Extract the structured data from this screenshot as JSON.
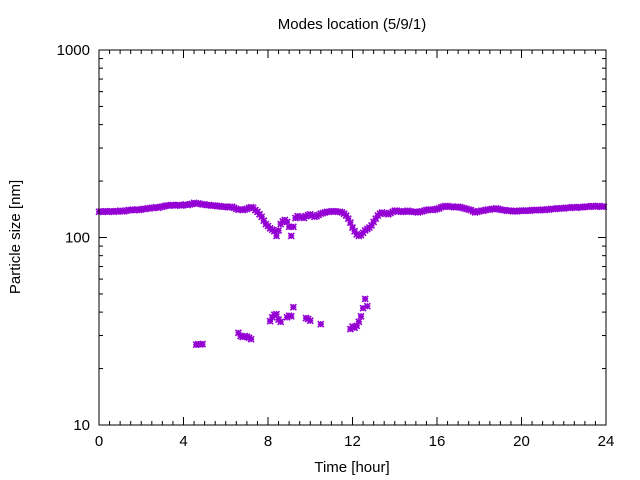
{
  "chart_data": {
    "type": "scatter",
    "title": "Modes location (5/9/1)",
    "xlabel": "Time [hour]",
    "ylabel": "Particle size [nm]",
    "xlim": [
      0,
      24
    ],
    "ylim": [
      10,
      1000
    ],
    "yscale": "log",
    "grid": false,
    "legend": "none",
    "marker_color": "#9400d3",
    "x_ticks": [
      0,
      4,
      8,
      12,
      16,
      20,
      24
    ],
    "x_tick_labels": [
      "0",
      "4",
      "8",
      "12",
      "16",
      "20",
      "24"
    ],
    "y_ticks": [
      10,
      100,
      1000
    ],
    "y_tick_labels": [
      "10",
      "100",
      "1000"
    ],
    "points": [
      [
        0.0,
        137
      ],
      [
        0.1,
        138
      ],
      [
        0.2,
        137
      ],
      [
        0.3,
        138
      ],
      [
        0.4,
        137
      ],
      [
        0.5,
        138
      ],
      [
        0.6,
        138
      ],
      [
        0.7,
        137
      ],
      [
        0.8,
        138
      ],
      [
        0.9,
        138
      ],
      [
        1.0,
        139
      ],
      [
        1.1,
        138
      ],
      [
        1.2,
        138
      ],
      [
        1.3,
        139
      ],
      [
        1.4,
        140
      ],
      [
        1.5,
        140
      ],
      [
        1.6,
        141
      ],
      [
        1.7,
        140
      ],
      [
        1.8,
        141
      ],
      [
        1.9,
        140
      ],
      [
        2.0,
        141
      ],
      [
        2.1,
        142
      ],
      [
        2.2,
        142
      ],
      [
        2.3,
        143
      ],
      [
        2.4,
        143
      ],
      [
        2.5,
        144
      ],
      [
        2.6,
        144
      ],
      [
        2.7,
        145
      ],
      [
        2.8,
        144
      ],
      [
        2.9,
        145
      ],
      [
        3.0,
        146
      ],
      [
        3.1,
        147
      ],
      [
        3.2,
        148
      ],
      [
        3.3,
        148
      ],
      [
        3.4,
        149
      ],
      [
        3.5,
        149
      ],
      [
        3.6,
        148
      ],
      [
        3.7,
        149
      ],
      [
        3.8,
        149
      ],
      [
        3.9,
        148
      ],
      [
        4.0,
        149
      ],
      [
        4.1,
        150
      ],
      [
        4.2,
        149
      ],
      [
        4.3,
        150
      ],
      [
        4.4,
        151
      ],
      [
        4.5,
        153
      ],
      [
        4.6,
        152
      ],
      [
        4.7,
        152
      ],
      [
        4.8,
        151
      ],
      [
        4.9,
        150
      ],
      [
        5.0,
        150
      ],
      [
        5.1,
        149
      ],
      [
        5.2,
        149
      ],
      [
        5.3,
        148
      ],
      [
        5.4,
        148
      ],
      [
        5.5,
        148
      ],
      [
        5.6,
        147
      ],
      [
        5.7,
        147
      ],
      [
        5.8,
        146
      ],
      [
        5.9,
        146
      ],
      [
        6.0,
        146
      ],
      [
        6.1,
        145
      ],
      [
        6.2,
        145
      ],
      [
        6.3,
        146
      ],
      [
        6.4,
        144
      ],
      [
        6.5,
        142
      ],
      [
        6.6,
        141
      ],
      [
        6.7,
        141
      ],
      [
        6.8,
        140
      ],
      [
        6.9,
        141
      ],
      [
        7.0,
        142
      ],
      [
        7.1,
        144
      ],
      [
        7.2,
        145
      ],
      [
        7.3,
        144
      ],
      [
        7.4,
        140
      ],
      [
        7.5,
        137
      ],
      [
        7.6,
        133
      ],
      [
        7.7,
        129
      ],
      [
        7.8,
        123
      ],
      [
        7.9,
        118
      ],
      [
        8.0,
        115
      ],
      [
        8.1,
        112
      ],
      [
        8.2,
        110
      ],
      [
        8.3,
        108
      ],
      [
        8.4,
        102
      ],
      [
        8.5,
        109
      ],
      [
        8.6,
        118
      ],
      [
        8.7,
        122
      ],
      [
        8.8,
        124
      ],
      [
        8.9,
        121
      ],
      [
        9.0,
        114
      ],
      [
        9.1,
        102
      ],
      [
        9.2,
        114
      ],
      [
        9.3,
        127
      ],
      [
        9.4,
        130
      ],
      [
        9.5,
        129
      ],
      [
        9.6,
        128
      ],
      [
        9.7,
        127
      ],
      [
        9.8,
        130
      ],
      [
        9.9,
        132
      ],
      [
        10.0,
        133
      ],
      [
        10.1,
        131
      ],
      [
        10.2,
        129
      ],
      [
        10.3,
        130
      ],
      [
        10.4,
        132
      ],
      [
        10.5,
        134
      ],
      [
        10.6,
        135
      ],
      [
        10.7,
        136
      ],
      [
        10.8,
        137
      ],
      [
        10.9,
        137
      ],
      [
        11.0,
        138
      ],
      [
        11.1,
        138
      ],
      [
        11.2,
        138
      ],
      [
        11.3,
        137
      ],
      [
        11.4,
        137
      ],
      [
        11.5,
        136
      ],
      [
        11.6,
        134
      ],
      [
        11.7,
        131
      ],
      [
        11.8,
        126
      ],
      [
        11.9,
        120
      ],
      [
        12.0,
        113
      ],
      [
        12.1,
        108
      ],
      [
        12.2,
        104
      ],
      [
        12.3,
        102
      ],
      [
        12.4,
        103
      ],
      [
        12.5,
        106
      ],
      [
        12.6,
        109
      ],
      [
        12.7,
        111
      ],
      [
        12.8,
        113
      ],
      [
        12.9,
        116
      ],
      [
        13.0,
        121
      ],
      [
        13.1,
        126
      ],
      [
        13.2,
        131
      ],
      [
        13.3,
        134
      ],
      [
        13.4,
        136
      ],
      [
        13.5,
        135
      ],
      [
        13.6,
        134
      ],
      [
        13.7,
        133
      ],
      [
        13.8,
        135
      ],
      [
        13.9,
        137
      ],
      [
        14.0,
        139
      ],
      [
        14.1,
        139
      ],
      [
        14.2,
        138
      ],
      [
        14.3,
        137
      ],
      [
        14.4,
        137
      ],
      [
        14.5,
        138
      ],
      [
        14.6,
        139
      ],
      [
        14.7,
        138
      ],
      [
        14.8,
        137
      ],
      [
        14.9,
        137
      ],
      [
        15.0,
        137
      ],
      [
        15.1,
        136
      ],
      [
        15.2,
        137
      ],
      [
        15.3,
        138
      ],
      [
        15.4,
        139
      ],
      [
        15.5,
        140
      ],
      [
        15.6,
        141
      ],
      [
        15.7,
        141
      ],
      [
        15.8,
        140
      ],
      [
        15.9,
        141
      ],
      [
        16.0,
        142
      ],
      [
        16.1,
        143
      ],
      [
        16.2,
        145
      ],
      [
        16.3,
        146
      ],
      [
        16.4,
        147
      ],
      [
        16.5,
        147
      ],
      [
        16.6,
        146
      ],
      [
        16.7,
        146
      ],
      [
        16.8,
        145
      ],
      [
        16.9,
        145
      ],
      [
        17.0,
        146
      ],
      [
        17.1,
        145
      ],
      [
        17.2,
        144
      ],
      [
        17.3,
        143
      ],
      [
        17.4,
        142
      ],
      [
        17.5,
        141
      ],
      [
        17.6,
        140
      ],
      [
        17.7,
        138
      ],
      [
        17.8,
        136
      ],
      [
        17.9,
        137
      ],
      [
        18.0,
        138
      ],
      [
        18.1,
        139
      ],
      [
        18.2,
        139
      ],
      [
        18.3,
        140
      ],
      [
        18.4,
        141
      ],
      [
        18.5,
        141
      ],
      [
        18.6,
        142
      ],
      [
        18.7,
        142
      ],
      [
        18.8,
        143
      ],
      [
        18.9,
        142
      ],
      [
        19.0,
        141
      ],
      [
        19.1,
        140
      ],
      [
        19.2,
        140
      ],
      [
        19.3,
        139
      ],
      [
        19.4,
        139
      ],
      [
        19.5,
        139
      ],
      [
        19.6,
        138
      ],
      [
        19.7,
        138
      ],
      [
        19.8,
        138
      ],
      [
        19.9,
        139
      ],
      [
        20.0,
        139
      ],
      [
        20.1,
        139
      ],
      [
        20.2,
        139
      ],
      [
        20.3,
        139
      ],
      [
        20.4,
        139
      ],
      [
        20.5,
        140
      ],
      [
        20.6,
        140
      ],
      [
        20.7,
        140
      ],
      [
        20.8,
        140
      ],
      [
        20.9,
        140
      ],
      [
        21.0,
        141
      ],
      [
        21.1,
        140
      ],
      [
        21.2,
        141
      ],
      [
        21.3,
        141
      ],
      [
        21.4,
        142
      ],
      [
        21.5,
        142
      ],
      [
        21.6,
        142
      ],
      [
        21.7,
        143
      ],
      [
        21.8,
        143
      ],
      [
        21.9,
        143
      ],
      [
        22.0,
        143
      ],
      [
        22.1,
        144
      ],
      [
        22.2,
        144
      ],
      [
        22.3,
        144
      ],
      [
        22.4,
        145
      ],
      [
        22.5,
        145
      ],
      [
        22.6,
        144
      ],
      [
        22.7,
        145
      ],
      [
        22.8,
        145
      ],
      [
        22.9,
        145
      ],
      [
        23.0,
        146
      ],
      [
        23.1,
        146
      ],
      [
        23.2,
        146
      ],
      [
        23.3,
        147
      ],
      [
        23.4,
        147
      ],
      [
        23.5,
        146
      ],
      [
        23.6,
        147
      ],
      [
        23.7,
        147
      ],
      [
        23.8,
        146
      ],
      [
        23.9,
        146
      ],
      [
        4.6,
        26.8
      ],
      [
        4.7,
        27.0
      ],
      [
        4.8,
        26.9
      ],
      [
        4.9,
        27.0
      ],
      [
        6.6,
        31
      ],
      [
        6.7,
        29.8
      ],
      [
        6.8,
        29.5
      ],
      [
        6.9,
        29.8
      ],
      [
        7.0,
        29.6
      ],
      [
        7.1,
        29.2
      ],
      [
        7.2,
        28.7
      ],
      [
        8.1,
        35.8
      ],
      [
        8.2,
        37.5
      ],
      [
        8.3,
        38.7
      ],
      [
        8.4,
        39.0
      ],
      [
        8.5,
        36.5
      ],
      [
        8.6,
        35.5
      ],
      [
        8.9,
        37.5
      ],
      [
        9.0,
        38.3
      ],
      [
        9.1,
        38.0
      ],
      [
        9.2,
        42.5
      ],
      [
        9.8,
        37.2
      ],
      [
        9.9,
        36.8
      ],
      [
        10.0,
        36.0
      ],
      [
        10.5,
        34.5
      ],
      [
        11.9,
        32.5
      ],
      [
        12.0,
        33.5
      ],
      [
        12.1,
        33.0
      ],
      [
        12.2,
        33.8
      ],
      [
        12.3,
        35.5
      ],
      [
        12.4,
        38.0
      ],
      [
        12.5,
        42.0
      ],
      [
        12.6,
        47.0
      ],
      [
        12.7,
        43.0
      ]
    ]
  }
}
